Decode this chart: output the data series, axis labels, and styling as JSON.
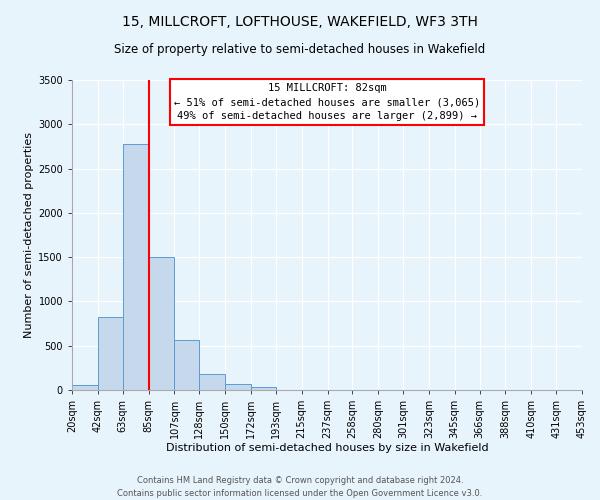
{
  "title": "15, MILLCROFT, LOFTHOUSE, WAKEFIELD, WF3 3TH",
  "subtitle": "Size of property relative to semi-detached houses in Wakefield",
  "bar_values": [
    60,
    820,
    2780,
    1500,
    560,
    185,
    65,
    30,
    0,
    0,
    0,
    0,
    0,
    0,
    0,
    0,
    0,
    0,
    0,
    0
  ],
  "bin_edges": [
    20,
    42,
    63,
    85,
    107,
    128,
    150,
    172,
    193,
    215,
    237,
    258,
    280,
    301,
    323,
    345,
    366,
    388,
    410,
    431,
    453
  ],
  "bin_labels": [
    "20sqm",
    "42sqm",
    "63sqm",
    "85sqm",
    "107sqm",
    "128sqm",
    "150sqm",
    "172sqm",
    "193sqm",
    "215sqm",
    "237sqm",
    "258sqm",
    "280sqm",
    "301sqm",
    "323sqm",
    "345sqm",
    "366sqm",
    "388sqm",
    "410sqm",
    "431sqm",
    "453sqm"
  ],
  "bar_color": "#c5d8ec",
  "bar_edge_color": "#5b9bd5",
  "property_line_x": 85,
  "property_line_color": "red",
  "annotation_title": "15 MILLCROFT: 82sqm",
  "annotation_line1": "← 51% of semi-detached houses are smaller (3,065)",
  "annotation_line2": "49% of semi-detached houses are larger (2,899) →",
  "annotation_box_color": "white",
  "annotation_box_edge_color": "red",
  "xlabel": "Distribution of semi-detached houses by size in Wakefield",
  "ylabel": "Number of semi-detached properties",
  "ylim": [
    0,
    3500
  ],
  "yticks": [
    0,
    500,
    1000,
    1500,
    2000,
    2500,
    3000,
    3500
  ],
  "footer_line1": "Contains HM Land Registry data © Crown copyright and database right 2024.",
  "footer_line2": "Contains public sector information licensed under the Open Government Licence v3.0.",
  "background_color": "#e8f4fb",
  "plot_bg_color": "#e8f4fb",
  "grid_color": "white",
  "title_fontsize": 10,
  "subtitle_fontsize": 8.5,
  "axis_label_fontsize": 8,
  "tick_fontsize": 7,
  "annotation_fontsize": 7.5,
  "footer_fontsize": 6
}
